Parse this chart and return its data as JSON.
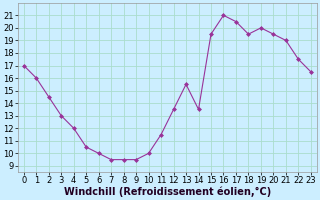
{
  "x": [
    0,
    1,
    2,
    3,
    4,
    5,
    6,
    7,
    8,
    9,
    10,
    11,
    12,
    13,
    14,
    15,
    16,
    17,
    18,
    19,
    20,
    21,
    22,
    23
  ],
  "y": [
    17,
    16,
    14.5,
    13,
    12,
    10.5,
    10,
    9.5,
    9.5,
    9.5,
    10,
    11.5,
    13.5,
    15.5,
    13.5,
    19.5,
    21,
    20.5,
    19.5,
    20,
    19.5,
    19,
    17.5,
    16.5
  ],
  "line_color": "#993399",
  "marker": "D",
  "marker_size": 2.0,
  "bg_color": "#cceeff",
  "grid_color": "#aaddcc",
  "xlabel": "Windchill (Refroidissement éolien,°C)",
  "xlim": [
    -0.5,
    23.5
  ],
  "ylim": [
    8.5,
    22
  ],
  "yticks": [
    9,
    10,
    11,
    12,
    13,
    14,
    15,
    16,
    17,
    18,
    19,
    20,
    21
  ],
  "xticks": [
    0,
    1,
    2,
    3,
    4,
    5,
    6,
    7,
    8,
    9,
    10,
    11,
    12,
    13,
    14,
    15,
    16,
    17,
    18,
    19,
    20,
    21,
    22,
    23
  ],
  "tick_label_fontsize": 6,
  "xlabel_fontsize": 7,
  "linewidth": 0.8
}
